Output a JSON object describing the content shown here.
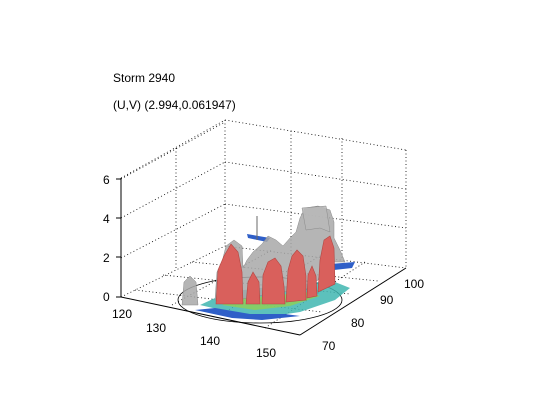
{
  "chart_data": {
    "type": "surface-3d",
    "title": "Storm 2940",
    "subtitle": "(U,V) (2.994,0.061947)",
    "xlabel": "",
    "ylabel": "",
    "zlabel": "",
    "x_ticks": [
      "120",
      "130",
      "140",
      "150"
    ],
    "y_ticks": [
      "70",
      "80",
      "90",
      "100"
    ],
    "z_ticks": [
      "0",
      "2",
      "4",
      "6"
    ],
    "xlim": [
      120,
      155
    ],
    "ylim": [
      65,
      105
    ],
    "zlim": [
      0,
      6.5
    ],
    "grid": true,
    "grid_style": "dotted",
    "colors": {
      "outer_isosurface": "#a8a8a8",
      "inner_isosurface": "#d9605c",
      "base_teal": "#3fb6b0",
      "base_green": "#8ccf5a",
      "base_blue": "#2f5fc8",
      "track": "#000000"
    },
    "inner_peaks": [
      {
        "x": 137,
        "y": 82,
        "z": 4.5
      },
      {
        "x": 140,
        "y": 84,
        "z": 3.7
      },
      {
        "x": 142,
        "y": 86,
        "z": 3.6
      },
      {
        "x": 145,
        "y": 88,
        "z": 4.1
      },
      {
        "x": 147,
        "y": 90,
        "z": 3.2
      },
      {
        "x": 150,
        "y": 93,
        "z": 4.3
      }
    ],
    "outer_peaks": [
      {
        "x": 131,
        "y": 82,
        "z": 1.8
      },
      {
        "x": 137,
        "y": 82,
        "z": 5.5
      },
      {
        "x": 140,
        "y": 88,
        "z": 4.2
      },
      {
        "x": 145,
        "y": 88,
        "z": 4.3
      },
      {
        "x": 148,
        "y": 91,
        "z": 4.8
      },
      {
        "x": 152,
        "y": 94,
        "z": 5.3
      },
      {
        "x": 155,
        "y": 96,
        "z": 5.2
      }
    ],
    "track_circle": {
      "center_x": 143,
      "center_y": 85,
      "radius": 11
    }
  }
}
